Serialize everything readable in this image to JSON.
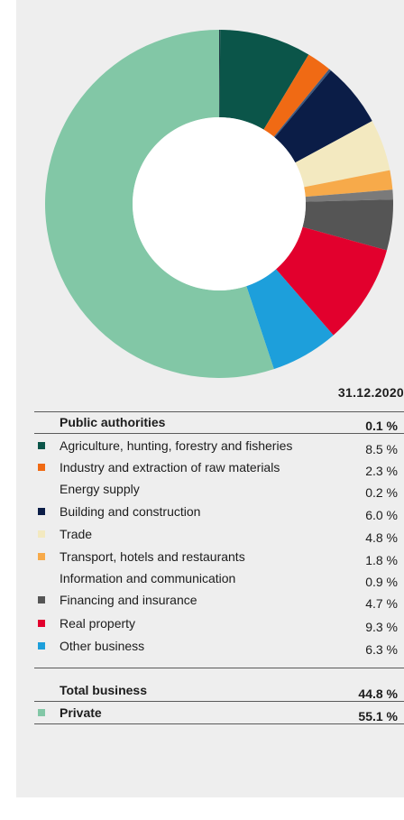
{
  "colors": {
    "background": "#eeeeee",
    "rule": "#5a5a5a"
  },
  "chart_data": {
    "type": "pie",
    "variant": "donut",
    "date_header": "31.12.2020",
    "categories": [
      "Public authorities",
      "Agriculture, hunting, forestry and fisheries",
      "Industry and extraction of raw materials",
      "Energy supply",
      "Building and construction",
      "Trade",
      "Transport, hotels and restaurants",
      "Information and communication",
      "Financing and insurance",
      "Real property",
      "Other business",
      "Private"
    ],
    "values": [
      0.1,
      8.5,
      2.3,
      0.2,
      6.0,
      4.8,
      1.8,
      0.9,
      4.7,
      9.3,
      6.3,
      55.1
    ],
    "colors": [
      "#1f3a45",
      "#0b5549",
      "#f06a14",
      "#3d5a80",
      "#0b1d47",
      "#f3e9c0",
      "#f7aa4a",
      "#7a7a7a",
      "#555555",
      "#e2002d",
      "#1d9fdb",
      "#82c7a6"
    ],
    "table": {
      "rows": [
        {
          "label": "Public authorities",
          "value": "0.1 %",
          "bold": true,
          "swatch": null
        },
        {
          "label": "Agriculture, hunting, forestry and fisheries",
          "value": "8.5 %",
          "bold": false,
          "swatch": "#0b5549"
        },
        {
          "label": "Industry and extraction of raw materials",
          "value": "2.3 %",
          "bold": false,
          "swatch": "#f06a14"
        },
        {
          "label": "Energy supply",
          "value": "0.2 %",
          "bold": false,
          "swatch": null
        },
        {
          "label": "Building and construction",
          "value": "6.0 %",
          "bold": false,
          "swatch": "#0b1d47"
        },
        {
          "label": "Trade",
          "value": "4.8 %",
          "bold": false,
          "swatch": "#f3e9c0"
        },
        {
          "label": "Transport, hotels and restaurants",
          "value": "1.8 %",
          "bold": false,
          "swatch": "#f7aa4a"
        },
        {
          "label": "Information and communication",
          "value": "0.9 %",
          "bold": false,
          "swatch": null
        },
        {
          "label": "Financing and insurance",
          "value": "4.7 %",
          "bold": false,
          "swatch": "#555555"
        },
        {
          "label": "Real property",
          "value": "9.3 %",
          "bold": false,
          "swatch": "#e2002d"
        },
        {
          "label": "Other business",
          "value": "6.3 %",
          "bold": false,
          "swatch": "#1d9fdb"
        },
        {
          "label": "Total business",
          "value": "44.8 %",
          "bold": true,
          "swatch": null
        },
        {
          "label": "Private",
          "value": "55.1 %",
          "bold": true,
          "swatch": "#82c7a6"
        }
      ]
    }
  }
}
